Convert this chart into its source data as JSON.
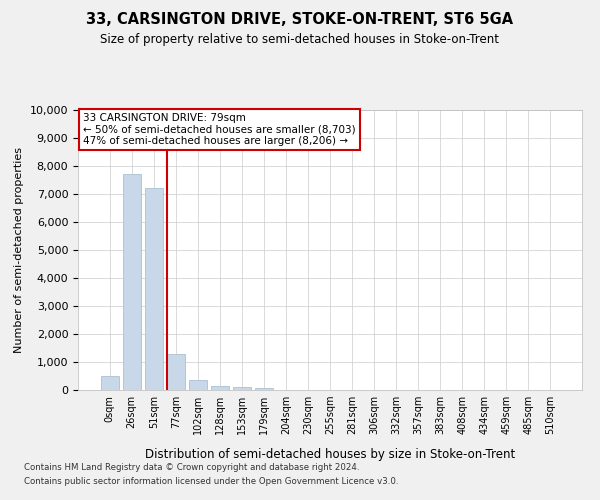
{
  "title": "33, CARSINGTON DRIVE, STOKE-ON-TRENT, ST6 5GA",
  "subtitle": "Size of property relative to semi-detached houses in Stoke-on-Trent",
  "xlabel": "Distribution of semi-detached houses by size in Stoke-on-Trent",
  "ylabel": "Number of semi-detached properties",
  "bin_labels": [
    "0sqm",
    "26sqm",
    "51sqm",
    "77sqm",
    "102sqm",
    "128sqm",
    "153sqm",
    "179sqm",
    "204sqm",
    "230sqm",
    "255sqm",
    "281sqm",
    "306sqm",
    "332sqm",
    "357sqm",
    "383sqm",
    "408sqm",
    "434sqm",
    "459sqm",
    "485sqm",
    "510sqm"
  ],
  "bar_values": [
    500,
    7700,
    7200,
    1300,
    350,
    150,
    100,
    55,
    0,
    0,
    0,
    0,
    0,
    0,
    0,
    0,
    0,
    0,
    0,
    0,
    0
  ],
  "bar_color": "#c8d8e8",
  "bar_edgecolor": "#a0b8cc",
  "property_line_x": 2.6,
  "property_line_color": "#cc0000",
  "annotation_text": "33 CARSINGTON DRIVE: 79sqm\n← 50% of semi-detached houses are smaller (8,703)\n47% of semi-detached houses are larger (8,206) →",
  "annotation_box_color": "#ffffff",
  "annotation_box_edgecolor": "#cc0000",
  "ylim": [
    0,
    10000
  ],
  "yticks": [
    0,
    1000,
    2000,
    3000,
    4000,
    5000,
    6000,
    7000,
    8000,
    9000,
    10000
  ],
  "footer_line1": "Contains HM Land Registry data © Crown copyright and database right 2024.",
  "footer_line2": "Contains public sector information licensed under the Open Government Licence v3.0.",
  "background_color": "#f0f0f0",
  "plot_background_color": "#ffffff",
  "grid_color": "#cccccc"
}
